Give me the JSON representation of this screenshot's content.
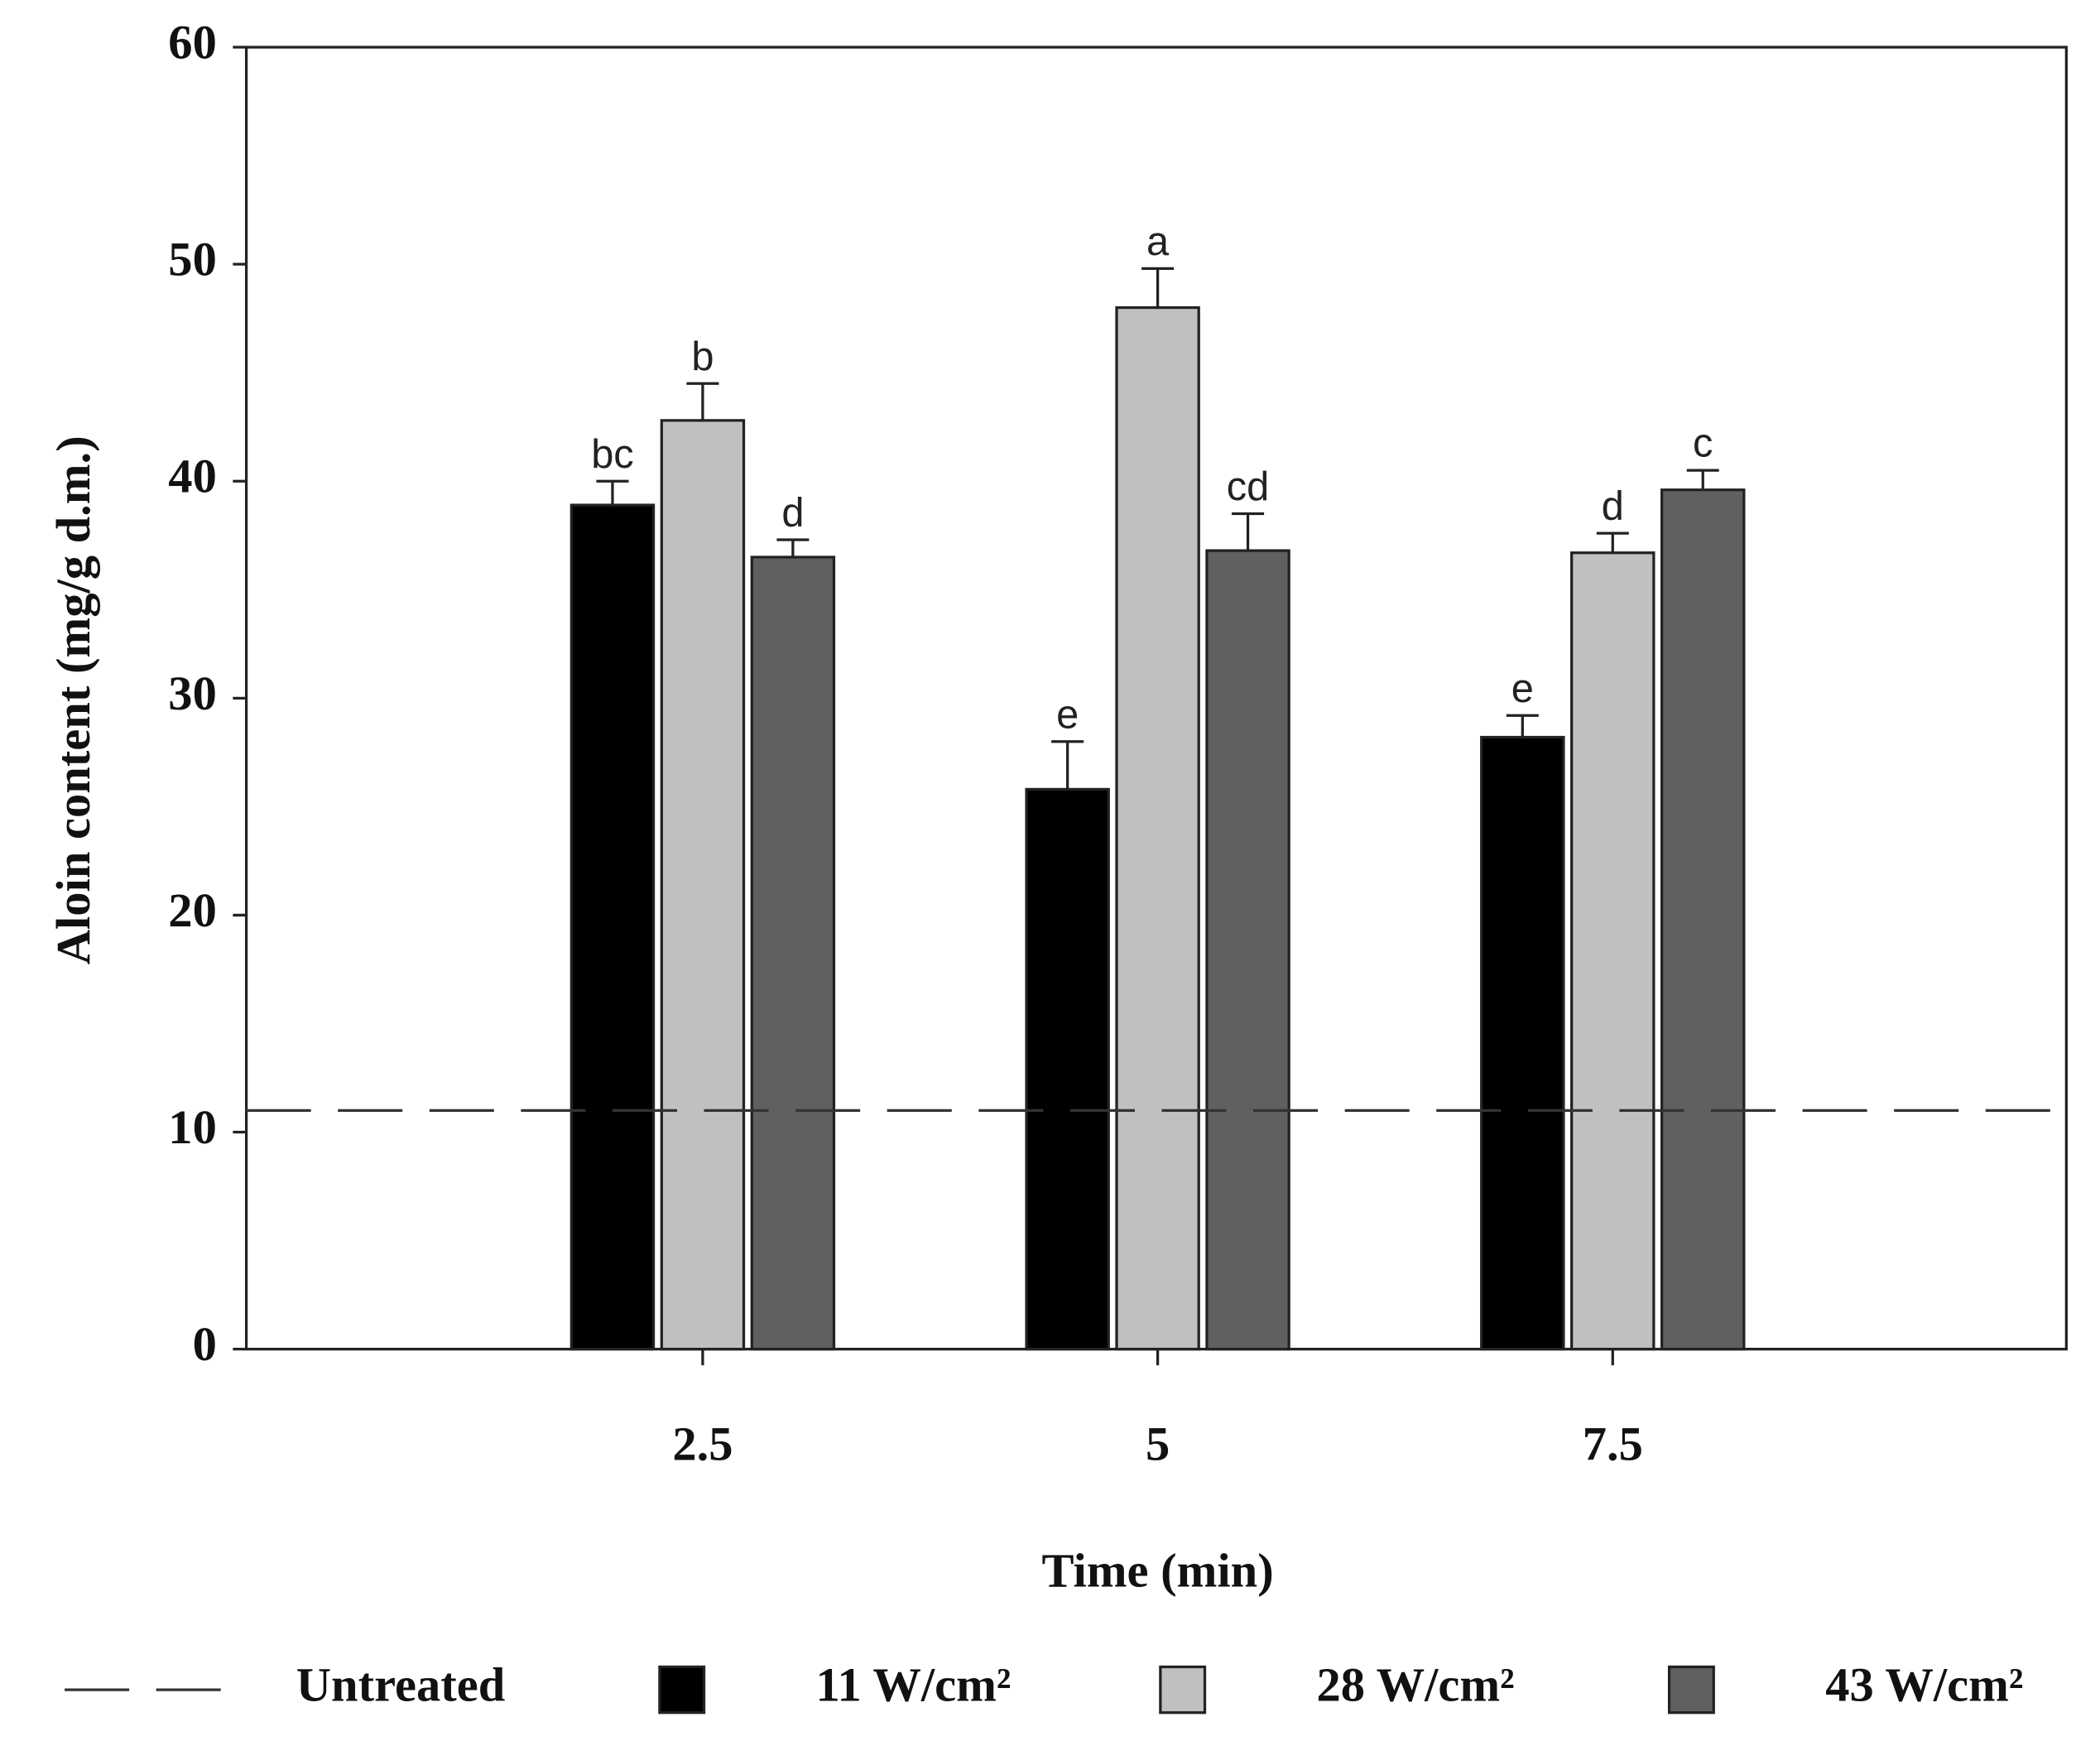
{
  "chart_data": {
    "type": "bar",
    "y_label": "Aloin content (mg/g d.m.)",
    "x_label": "Time (min)",
    "categories": [
      "2.5",
      "5",
      "7.5"
    ],
    "ylim": [
      0,
      60
    ],
    "yticks": [
      0,
      10,
      20,
      30,
      40,
      50,
      60
    ],
    "reference_line": {
      "name": "Untreated",
      "value": 11
    },
    "series": [
      {
        "name": "11 W/cm²",
        "color": "#000000",
        "values": [
          38.9,
          25.8,
          28.2
        ],
        "errors": [
          1.1,
          2.2,
          1.0
        ],
        "labels": [
          "bc",
          "e",
          "e"
        ]
      },
      {
        "name": "28 W/cm²",
        "color": "#c0c0c0",
        "values": [
          42.8,
          48.0,
          36.7
        ],
        "errors": [
          1.7,
          1.8,
          0.9
        ],
        "labels": [
          "b",
          "a",
          "d"
        ]
      },
      {
        "name": "43 W/cm²",
        "color": "#606060",
        "values": [
          36.5,
          36.8,
          39.6
        ],
        "errors": [
          0.8,
          1.7,
          0.9
        ],
        "labels": [
          "d",
          "cd",
          "c"
        ]
      }
    ]
  }
}
